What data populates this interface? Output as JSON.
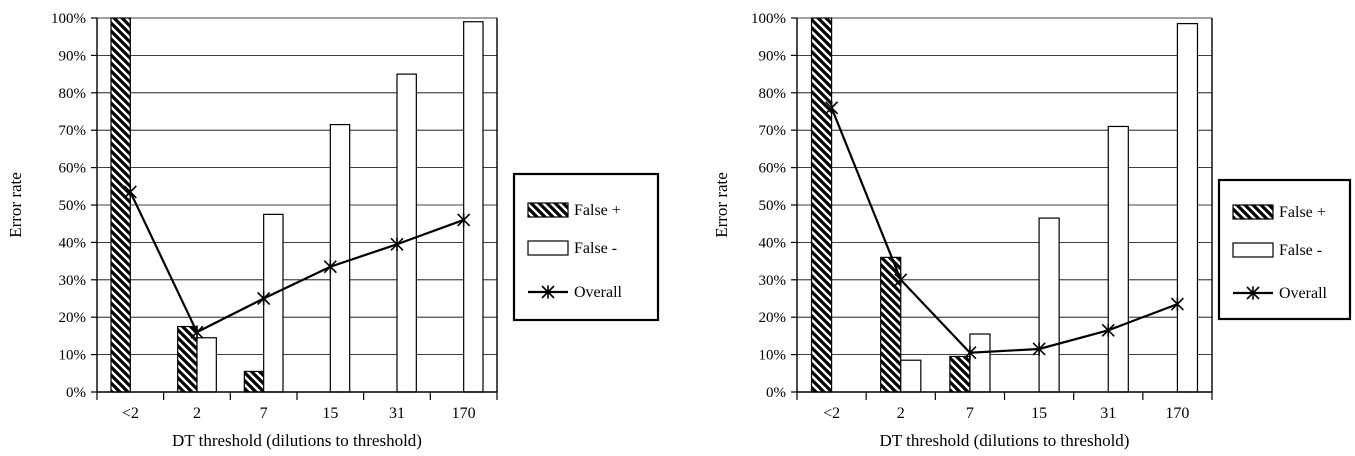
{
  "chart_data": [
    {
      "type": "bar",
      "categories": [
        "<2",
        "2",
        "7",
        "15",
        "31",
        "170"
      ],
      "xlabel": "DT threshold (dilutions to threshold)",
      "ylabel": "Error rate",
      "ylim": [
        0,
        100
      ],
      "ytick_labels": [
        "0%",
        "10%",
        "20%",
        "30%",
        "40%",
        "50%",
        "60%",
        "70%",
        "80%",
        "90%",
        "100%"
      ],
      "grid": true,
      "legend_position": "right",
      "series": [
        {
          "name": "False +",
          "kind": "bar",
          "pattern": "hatched",
          "values": [
            100,
            17.5,
            5.5,
            0,
            0,
            0
          ]
        },
        {
          "name": "False -",
          "kind": "bar",
          "pattern": "white",
          "values": [
            0,
            14.5,
            47.5,
            71.5,
            85,
            99
          ]
        },
        {
          "name": "Overall",
          "kind": "line",
          "marker": "asterisk",
          "values": [
            53.5,
            16,
            25,
            33.5,
            39.5,
            46
          ]
        }
      ]
    },
    {
      "type": "bar",
      "categories": [
        "<2",
        "2",
        "7",
        "15",
        "31",
        "170"
      ],
      "xlabel": "DT threshold (dilutions to threshold)",
      "ylabel": "Error rate",
      "ylim": [
        0,
        100
      ],
      "ytick_labels": [
        "0%",
        "10%",
        "20%",
        "30%",
        "40%",
        "50%",
        "60%",
        "70%",
        "80%",
        "90%",
        "100%"
      ],
      "grid": true,
      "legend_position": "right",
      "series": [
        {
          "name": "False +",
          "kind": "bar",
          "pattern": "hatched",
          "values": [
            100,
            36,
            9.5,
            0,
            0,
            0
          ]
        },
        {
          "name": "False -",
          "kind": "bar",
          "pattern": "white",
          "values": [
            0,
            8.5,
            15.5,
            46.5,
            71,
            98.5
          ]
        },
        {
          "name": "Overall",
          "kind": "line",
          "marker": "asterisk",
          "values": [
            76,
            30,
            10.5,
            11.5,
            16.5,
            23.5
          ]
        }
      ]
    }
  ]
}
